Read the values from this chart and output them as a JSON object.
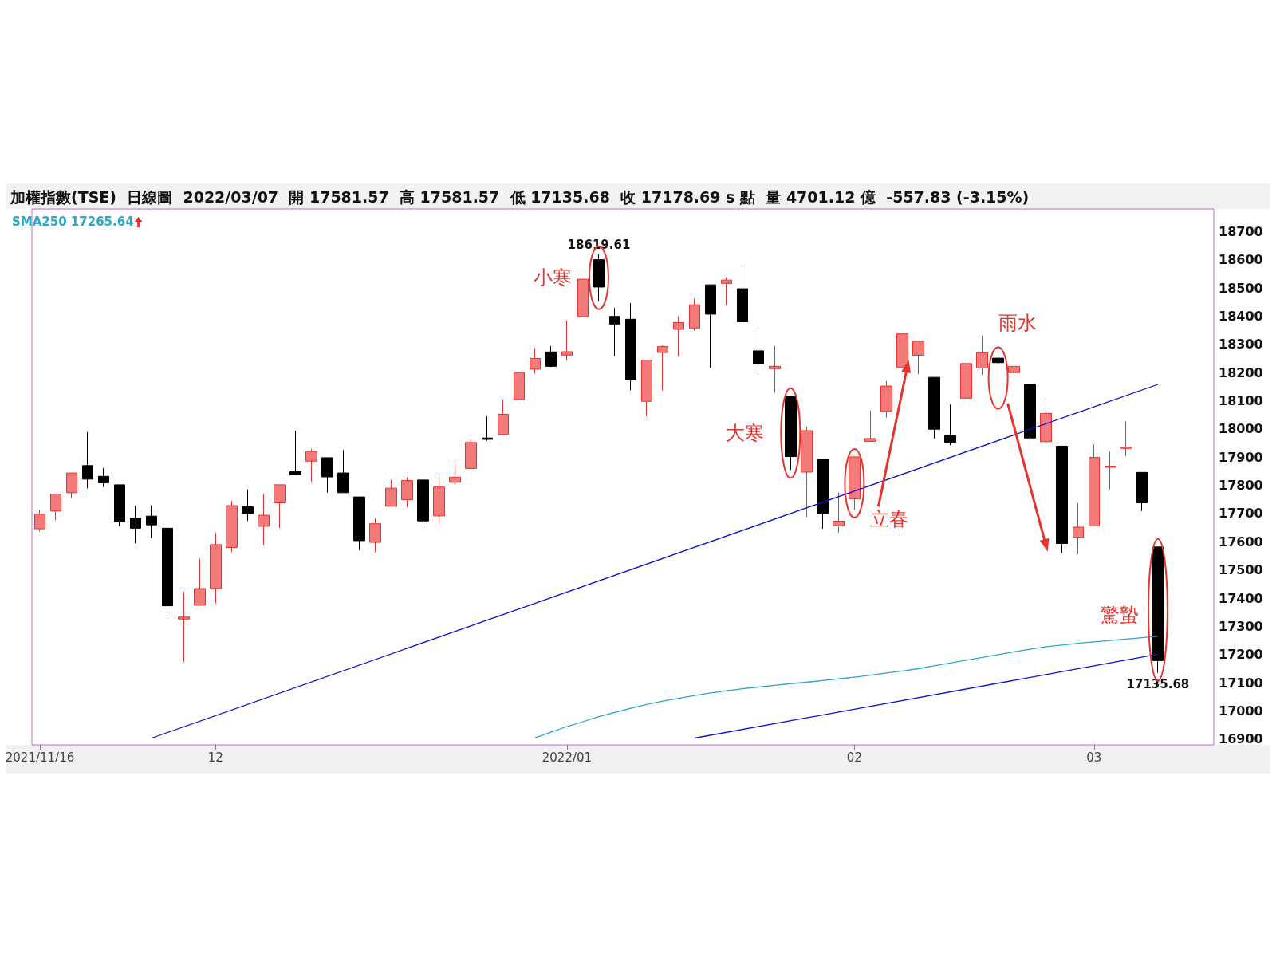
{
  "chart_data": {
    "type": "candlestick",
    "title": "加權指數(TSE)  日線圖  2022/03/07  開 17581.57  高 17581.57  低 17135.68  收 17178.69 s 點  量 4701.12 億  -557.83 (-3.15%)",
    "categories": [
      "2021/11/16",
      null,
      null,
      null,
      null,
      null,
      null,
      null,
      null,
      null,
      null,
      "12",
      null,
      null,
      null,
      null,
      null,
      null,
      null,
      null,
      null,
      null,
      null,
      null,
      null,
      null,
      null,
      null,
      null,
      null,
      null,
      null,
      null,
      "2022/01",
      null,
      null,
      null,
      null,
      null,
      null,
      null,
      null,
      null,
      null,
      null,
      null,
      null,
      null,
      null,
      null,
      null,
      "02",
      null,
      null,
      null,
      null,
      null,
      null,
      null,
      null,
      null,
      null,
      null,
      null,
      null,
      null,
      "03",
      null,
      null,
      null,
      null
    ],
    "ohlc": [
      [
        17646,
        17711,
        17636,
        17698
      ],
      [
        17709,
        17769,
        17676,
        17769
      ],
      [
        17774,
        17844,
        17755,
        17844
      ],
      [
        17870,
        17989,
        17789,
        17822
      ],
      [
        17832,
        17861,
        17794,
        17809
      ],
      [
        17802,
        17802,
        17656,
        17671
      ],
      [
        17684,
        17728,
        17595,
        17648
      ],
      [
        17691,
        17729,
        17613,
        17660
      ],
      [
        17648,
        17648,
        17335,
        17373
      ],
      [
        17326,
        17422,
        17174,
        17333
      ],
      [
        17375,
        17540,
        17375,
        17434
      ],
      [
        17434,
        17631,
        17381,
        17590
      ],
      [
        17580,
        17745,
        17563,
        17728
      ],
      [
        17724,
        17785,
        17674,
        17700
      ],
      [
        17655,
        17769,
        17589,
        17694
      ],
      [
        17738,
        17802,
        17648,
        17802
      ],
      [
        17849,
        17994,
        17837,
        17837
      ],
      [
        17886,
        17928,
        17812,
        17920
      ],
      [
        17898,
        17898,
        17774,
        17830
      ],
      [
        17844,
        17925,
        17774,
        17774
      ],
      [
        17759,
        17759,
        17570,
        17604
      ],
      [
        17598,
        17684,
        17562,
        17664
      ],
      [
        17726,
        17820,
        17726,
        17790
      ],
      [
        17749,
        17828,
        17723,
        17817
      ],
      [
        17819,
        17819,
        17649,
        17674
      ],
      [
        17692,
        17829,
        17659,
        17794
      ],
      [
        17811,
        17874,
        17803,
        17829
      ],
      [
        17860,
        17965,
        17860,
        17952
      ],
      [
        17968,
        18045,
        17958,
        17963
      ],
      [
        17980,
        18104,
        17980,
        18052
      ],
      [
        18104,
        18200,
        18104,
        18200
      ],
      [
        18212,
        18286,
        18196,
        18250
      ],
      [
        18273,
        18294,
        18219,
        18222
      ],
      [
        18262,
        18384,
        18243,
        18274
      ],
      [
        18398,
        18531,
        18398,
        18531
      ],
      [
        18600,
        18619.61,
        18453,
        18503
      ],
      [
        18399,
        18429,
        18258,
        18372
      ],
      [
        18389,
        18446,
        18137,
        18174
      ],
      [
        18098,
        18244,
        18046,
        18244
      ],
      [
        18271,
        18297,
        18137,
        18292
      ],
      [
        18353,
        18399,
        18257,
        18377
      ],
      [
        18358,
        18462,
        18349,
        18440
      ],
      [
        18511,
        18511,
        18217,
        18407
      ],
      [
        18516,
        18537,
        18438,
        18528
      ],
      [
        18497,
        18580,
        18380,
        18380
      ],
      [
        18277,
        18361,
        18203,
        18231
      ],
      [
        18214,
        18294,
        18128,
        18222
      ],
      [
        18116,
        18116,
        17855,
        17902
      ],
      [
        17847,
        18008,
        17687,
        17994
      ],
      [
        17892,
        17892,
        17646,
        17701
      ],
      [
        17657,
        17774,
        17633,
        17673
      ],
      [
        17752,
        17901,
        17714,
        17901
      ],
      [
        17956,
        18065,
        17956,
        17966
      ],
      [
        18062,
        18170,
        18040,
        18152
      ],
      [
        18218,
        18337,
        18218,
        18337
      ],
      [
        18261,
        18311,
        18194,
        18311
      ],
      [
        18183,
        18183,
        17966,
        17999
      ],
      [
        17978,
        18087,
        17942,
        17953
      ],
      [
        18109,
        18232,
        18109,
        18232
      ],
      [
        18216,
        18331,
        18192,
        18270
      ],
      [
        18251,
        18262,
        18100,
        18235
      ],
      [
        18200,
        18254,
        18131,
        18222
      ],
      [
        18159,
        18159,
        17839,
        17968
      ],
      [
        17955,
        18110,
        17955,
        18055
      ],
      [
        17939,
        17939,
        17560,
        17594
      ],
      [
        17616,
        17738,
        17556,
        17652
      ],
      [
        17656,
        17945,
        17656,
        17899
      ],
      [
        17864,
        17920,
        17785,
        17868
      ],
      [
        17931,
        18027,
        17904,
        17936
      ],
      [
        17846,
        17846,
        17709,
        17738
      ],
      [
        17581.57,
        17581.57,
        17135.68,
        17178.69
      ]
    ],
    "colors": [
      "#f47a7a",
      "#f47a7a",
      "#f47a7a",
      "#000000",
      "#000000",
      "#000000",
      "#000000",
      "#000000",
      "#000000",
      "#f47a7a",
      "#f47a7a",
      "#f47a7a",
      "#f47a7a",
      "#000000",
      "#f47a7a",
      "#f47a7a",
      "#000000",
      "#f47a7a",
      "#000000",
      "#000000",
      "#000000",
      "#f47a7a",
      "#f47a7a",
      "#f47a7a",
      "#000000",
      "#f47a7a",
      "#f47a7a",
      "#f47a7a",
      "#000000",
      "#f47a7a",
      "#f47a7a",
      "#f47a7a",
      "#000000",
      "#f47a7a",
      "#f47a7a",
      "#000000",
      "#000000",
      "#000000",
      "#f47a7a",
      "#f47a7a",
      "#f47a7a",
      "#f47a7a",
      "#000000",
      "#f47a7a",
      "#000000",
      "#000000",
      "#f47a7a",
      "#000000",
      "#f47a7a",
      "#000000",
      "#f47a7a",
      "#f47a7a",
      "#f47a7a",
      "#f47a7a",
      "#f47a7a",
      "#f47a7a",
      "#000000",
      "#000000",
      "#f47a7a",
      "#f47a7a",
      "#000000",
      "#f47a7a",
      "#000000",
      "#f47a7a",
      "#000000",
      "#f47a7a",
      "#f47a7a",
      "#f47a7a",
      "#f47a7a",
      "#000000",
      "#000000"
    ],
    "series": [
      {
        "type": "line",
        "name": "SMA250 17265.64",
        "color": "#2aa7c9",
        "values": [
          null,
          null,
          null,
          null,
          null,
          null,
          null,
          null,
          null,
          null,
          null,
          null,
          null,
          null,
          null,
          null,
          null,
          null,
          null,
          null,
          null,
          null,
          null,
          null,
          null,
          null,
          null,
          null,
          null,
          null,
          null,
          16905,
          16925,
          16945,
          16962,
          16980,
          16995,
          17010,
          17023,
          17035,
          17045,
          17055,
          17064,
          17072,
          17079,
          17085,
          17091,
          17097,
          17102,
          17108,
          17114,
          17120,
          17127,
          17135,
          17142,
          17150,
          17160,
          17170,
          17180,
          17190,
          17200,
          17210,
          17219,
          17228,
          17234,
          17240,
          17245,
          17250,
          17255,
          17260,
          17265.64
        ]
      },
      {
        "type": "line",
        "color": "#1010d0",
        "values": [
          null,
          null,
          null,
          null,
          null,
          null,
          null,
          16904,
          null,
          null,
          null,
          null,
          null,
          null,
          null,
          null,
          null,
          null,
          null,
          null,
          null,
          null,
          null,
          null,
          null,
          null,
          null,
          null,
          null,
          null,
          null,
          null,
          null,
          null,
          null,
          null,
          null,
          null,
          null,
          null,
          null,
          null,
          null,
          null,
          null,
          null,
          null,
          null,
          null,
          null,
          null,
          null,
          null,
          null,
          null,
          null,
          null,
          null,
          null,
          null,
          null,
          null,
          null,
          null,
          null,
          null,
          null,
          null,
          null,
          null,
          18158
        ]
      },
      {
        "type": "line",
        "color": "#1010d0",
        "values": [
          null,
          null,
          null,
          null,
          null,
          null,
          null,
          null,
          null,
          null,
          null,
          null,
          null,
          null,
          null,
          null,
          null,
          null,
          null,
          null,
          null,
          null,
          null,
          null,
          null,
          null,
          null,
          null,
          null,
          null,
          null,
          null,
          null,
          null,
          null,
          null,
          null,
          null,
          null,
          null,
          null,
          16904,
          null,
          null,
          null,
          null,
          null,
          null,
          null,
          null,
          null,
          null,
          null,
          null,
          null,
          null,
          null,
          null,
          null,
          null,
          null,
          null,
          null,
          null,
          null,
          null,
          null,
          null,
          null,
          null,
          17201
        ]
      }
    ],
    "annotations": [
      "18619.61",
      "17135.68",
      "小寒",
      "大寒",
      "立春",
      "雨水",
      "驚蟄"
    ],
    "ylim": [
      16880,
      18780
    ],
    "yticks": [
      16900,
      17000,
      17100,
      17200,
      17300,
      17400,
      17500,
      17600,
      17700,
      17800,
      17900,
      18000,
      18100,
      18200,
      18300,
      18400,
      18500,
      18600,
      18700
    ],
    "legend": "top left",
    "marker": "none"
  }
}
